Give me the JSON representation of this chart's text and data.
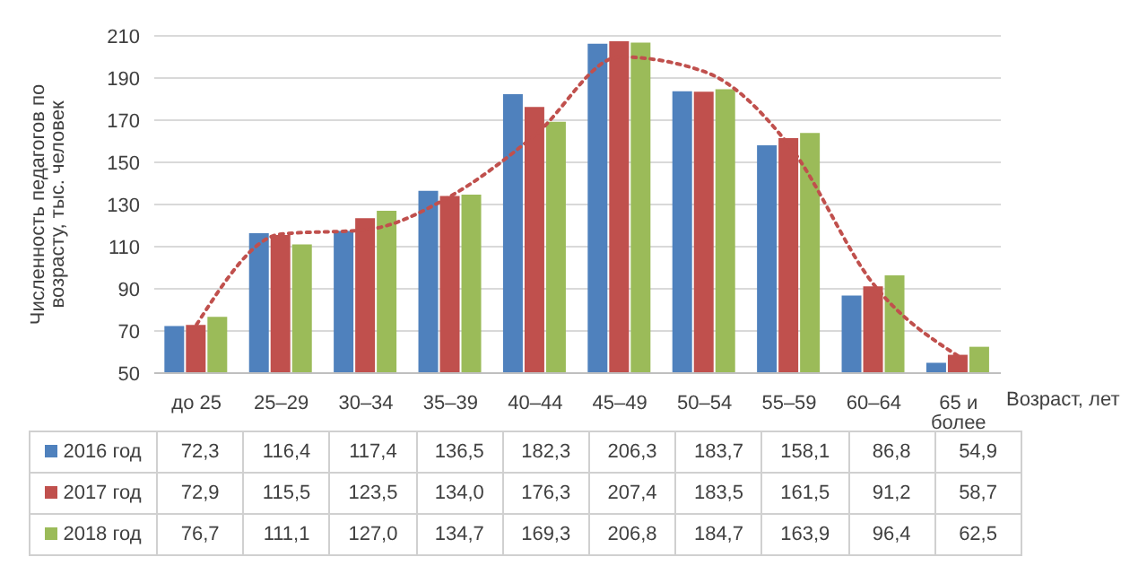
{
  "chart_data": {
    "type": "bar",
    "ylabel": "Численность педагогов по возрасту, тыс. человек",
    "xlabel": "Возраст, лет",
    "categories": [
      "до 25",
      "25–29",
      "30–34",
      "35–39",
      "40–44",
      "45–49",
      "50–54",
      "55–59",
      "60–64",
      "65 и более"
    ],
    "series": [
      {
        "name": "2016 год",
        "color": "#4f81bd",
        "values": [
          72.3,
          116.4,
          117.4,
          136.5,
          182.3,
          206.3,
          183.7,
          158.1,
          86.8,
          54.9
        ],
        "value_labels": [
          "72,3",
          "116,4",
          "117,4",
          "136,5",
          "182,3",
          "206,3",
          "183,7",
          "158,1",
          "86,8",
          "54,9"
        ]
      },
      {
        "name": "2017 год",
        "color": "#c0504d",
        "values": [
          72.9,
          115.5,
          123.5,
          134.0,
          176.3,
          207.4,
          183.5,
          161.5,
          91.2,
          58.7
        ],
        "value_labels": [
          "72,9",
          "115,5",
          "123,5",
          "134,0",
          "176,3",
          "207,4",
          "183,5",
          "161,5",
          "91,2",
          "58,7"
        ]
      },
      {
        "name": "2018 год",
        "color": "#9bbb59",
        "values": [
          76.7,
          111.1,
          127.0,
          134.7,
          169.3,
          206.8,
          184.7,
          163.9,
          96.4,
          62.5
        ],
        "value_labels": [
          "76,7",
          "111,1",
          "127,0",
          "134,7",
          "169,3",
          "206,8",
          "184,7",
          "163,9",
          "96,4",
          "62,5"
        ]
      },
      {
        "type": "line",
        "color": "#c0504d",
        "line_style": "dotted",
        "values": [
          73,
          116,
          118,
          134,
          163,
          200,
          193,
          158,
          92,
          58
        ]
      }
    ],
    "ylim": [
      50,
      210
    ],
    "yticks": [
      50,
      70,
      90,
      110,
      130,
      150,
      170,
      190,
      210
    ],
    "grid": "y",
    "legend": "bottom"
  }
}
